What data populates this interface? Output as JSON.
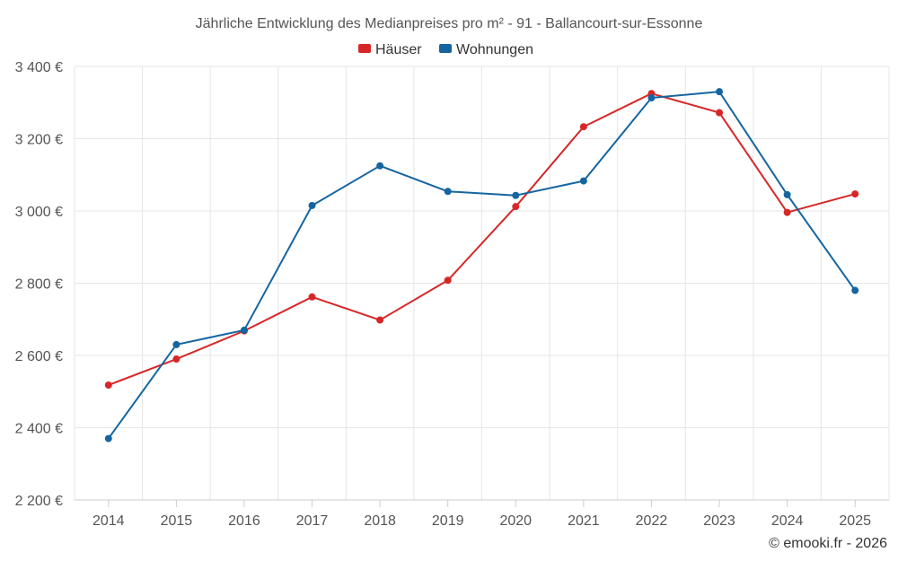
{
  "chart_data": {
    "type": "line",
    "title": "Jährliche Entwicklung des Medianpreises pro m² - 91 - Ballancourt-sur-Essonne",
    "categories": [
      "2014",
      "2015",
      "2016",
      "2017",
      "2018",
      "2019",
      "2020",
      "2021",
      "2022",
      "2023",
      "2024",
      "2025"
    ],
    "series": [
      {
        "name": "Häuser",
        "color": "#d62728",
        "values": [
          2518,
          2590,
          2668,
          2762,
          2698,
          2808,
          3012,
          3233,
          3325,
          3272,
          2996,
          3047
        ]
      },
      {
        "name": "Wohnungen",
        "color": "#1565a0",
        "values": [
          2370,
          2630,
          2670,
          3015,
          3125,
          3054,
          3043,
          3083,
          3313,
          3330,
          3045,
          2780
        ]
      }
    ],
    "y_ticks": [
      2200,
      2400,
      2600,
      2800,
      3000,
      3200,
      3400
    ],
    "y_tick_labels": [
      "2 200 €",
      "2 400 €",
      "2 600 €",
      "2 800 €",
      "3 000 €",
      "3 200 €",
      "3 400 €"
    ],
    "ylim": [
      2200,
      3400
    ],
    "xlabel": "",
    "ylabel": "",
    "grid": true,
    "legend_position": "top-center"
  },
  "credit": "© emooki.fr - 2026"
}
